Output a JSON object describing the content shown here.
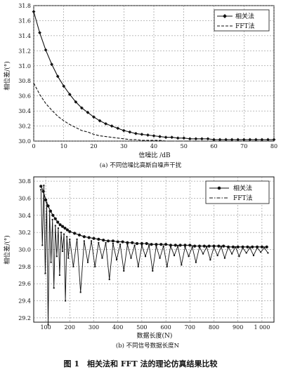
{
  "figure_caption": "图 1　相关法和 FFT 法的理论仿真结果比较",
  "chart_data": [
    {
      "type": "line",
      "subcaption": "(a) 不同信噪比高斯白噪声干扰",
      "xlabel": "信噪比 /dB",
      "ylabel": "相位差/(°)",
      "xlim": [
        0,
        80
      ],
      "ylim": [
        30.0,
        31.8
      ],
      "xticks": [
        "0",
        "10",
        "20",
        "30",
        "40",
        "50",
        "60",
        "70",
        "80"
      ],
      "yticks": [
        "30.0",
        "30.2",
        "30.4",
        "30.6",
        "30.8",
        "31.0",
        "31.2",
        "31.4",
        "31.6",
        "31.8"
      ],
      "grid": true,
      "legend_position": "top-right",
      "legend": [
        "相关法",
        "FFT法"
      ],
      "x": [
        0,
        2,
        4,
        6,
        8,
        10,
        12,
        14,
        16,
        18,
        20,
        22,
        24,
        26,
        28,
        30,
        32,
        34,
        36,
        38,
        40,
        42,
        44,
        46,
        48,
        50,
        52,
        54,
        56,
        58,
        60,
        62,
        64,
        66,
        68,
        70,
        72,
        74,
        76,
        78,
        80
      ],
      "series": [
        {
          "name": "相关法",
          "style": "solid-diamond",
          "values": [
            31.72,
            31.44,
            31.21,
            31.02,
            30.86,
            30.73,
            30.62,
            30.52,
            30.44,
            30.38,
            30.32,
            30.27,
            30.23,
            30.2,
            30.17,
            30.14,
            30.12,
            30.1,
            30.09,
            30.08,
            30.07,
            30.06,
            30.05,
            30.05,
            30.04,
            30.04,
            30.03,
            30.03,
            30.03,
            30.03,
            30.02,
            30.02,
            30.02,
            30.02,
            30.02,
            30.02,
            30.02,
            30.02,
            30.02,
            30.02,
            30.02
          ]
        },
        {
          "name": "FFT法",
          "style": "dashed",
          "values": [
            30.77,
            30.62,
            30.5,
            30.41,
            30.33,
            30.27,
            30.22,
            30.18,
            30.14,
            30.12,
            30.09,
            30.07,
            30.06,
            30.05,
            30.04,
            30.03,
            30.02,
            30.02,
            30.01,
            30.01,
            30.01,
            30.01,
            30.0,
            30.0,
            30.0,
            30.0,
            30.0,
            30.0,
            30.0,
            30.0,
            30.0,
            30.0,
            30.0,
            30.0,
            30.0,
            30.0,
            30.0,
            30.0,
            30.0,
            30.0,
            30.0
          ]
        }
      ]
    },
    {
      "type": "line",
      "subcaption": "(b) 不同信号数据长度N",
      "xlabel": "数据长度(N)",
      "ylabel": "相位差/(°)",
      "xlim": [
        50,
        1050
      ],
      "ylim": [
        29.15,
        30.85
      ],
      "xticks": [
        "100",
        "200",
        "300",
        "400",
        "500",
        "600",
        "700",
        "800",
        "900",
        "1 000"
      ],
      "xtick_values": [
        100,
        200,
        300,
        400,
        500,
        600,
        700,
        800,
        900,
        1000
      ],
      "yticks": [
        "29.2",
        "29.4",
        "29.6",
        "29.8",
        "30.0",
        "30.2",
        "30.4",
        "30.6",
        "30.8"
      ],
      "grid": true,
      "legend_position": "top-right",
      "legend": [
        "相关法",
        "FFT法"
      ],
      "series": [
        {
          "name": "相关法",
          "style": "solid-dot",
          "x": [
            80,
            90,
            100,
            110,
            120,
            130,
            140,
            150,
            160,
            170,
            180,
            190,
            200,
            220,
            240,
            260,
            280,
            300,
            320,
            340,
            360,
            380,
            400,
            420,
            440,
            460,
            480,
            500,
            520,
            540,
            560,
            580,
            600,
            620,
            640,
            660,
            680,
            700,
            720,
            740,
            760,
            780,
            800,
            820,
            840,
            860,
            880,
            900,
            920,
            940,
            960,
            980,
            1000,
            1020
          ],
          "values": [
            30.74,
            30.68,
            30.58,
            30.51,
            30.45,
            30.4,
            30.36,
            30.32,
            30.29,
            30.27,
            30.25,
            30.23,
            30.21,
            30.19,
            30.17,
            30.15,
            30.14,
            30.13,
            30.12,
            30.11,
            30.1,
            30.1,
            30.09,
            30.09,
            30.08,
            30.08,
            30.07,
            30.07,
            30.07,
            30.06,
            30.06,
            30.06,
            30.06,
            30.05,
            30.05,
            30.05,
            30.05,
            30.05,
            30.04,
            30.04,
            30.04,
            30.04,
            30.04,
            30.04,
            30.04,
            30.03,
            30.03,
            30.03,
            30.03,
            30.03,
            30.03,
            30.03,
            30.03,
            30.03
          ]
        },
        {
          "name": "FFT法",
          "style": "dash-dot-zigzag",
          "x": [
            80,
            86,
            92,
            98,
            104,
            110,
            116,
            122,
            128,
            134,
            140,
            146,
            152,
            158,
            164,
            170,
            176,
            182,
            188,
            194,
            200,
            215,
            230,
            245,
            260,
            275,
            290,
            305,
            320,
            335,
            350,
            365,
            380,
            395,
            410,
            425,
            440,
            455,
            470,
            485,
            500,
            515,
            530,
            545,
            560,
            575,
            590,
            605,
            620,
            635,
            650,
            665,
            680,
            695,
            710,
            725,
            740,
            755,
            770,
            785,
            800,
            815,
            830,
            845,
            860,
            875,
            890,
            905,
            920,
            935,
            950,
            965,
            980,
            995,
            1010,
            1025
          ],
          "values": [
            30.7,
            30.05,
            30.75,
            29.72,
            30.55,
            29.12,
            30.45,
            29.85,
            30.35,
            29.55,
            30.28,
            29.92,
            30.25,
            29.7,
            30.2,
            29.98,
            30.18,
            29.4,
            30.15,
            29.9,
            30.12,
            29.8,
            30.12,
            29.5,
            30.1,
            29.85,
            30.1,
            29.8,
            30.08,
            29.9,
            30.08,
            29.65,
            30.07,
            29.88,
            30.06,
            29.75,
            30.06,
            29.9,
            30.05,
            29.8,
            30.05,
            29.92,
            30.05,
            29.75,
            30.04,
            29.9,
            30.04,
            29.8,
            30.04,
            29.93,
            30.04,
            29.82,
            30.03,
            29.92,
            30.03,
            29.85,
            30.03,
            29.95,
            30.03,
            29.88,
            30.03,
            29.93,
            30.03,
            29.9,
            30.03,
            29.95,
            30.03,
            29.92,
            30.02,
            29.96,
            30.02,
            29.93,
            30.02,
            29.97,
            30.02,
            29.96
          ]
        }
      ]
    }
  ]
}
